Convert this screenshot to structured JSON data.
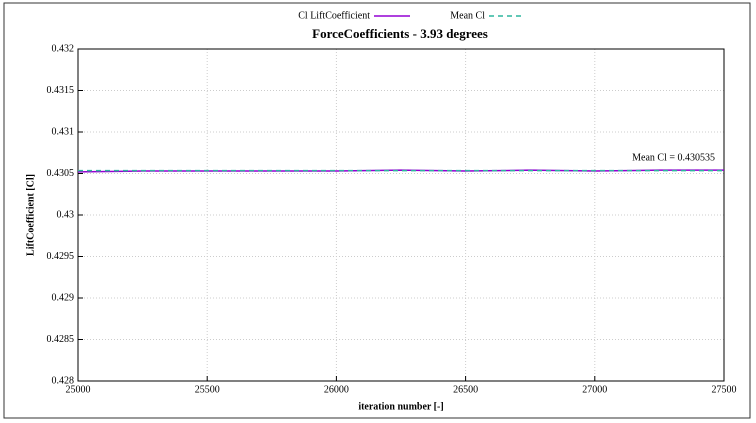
{
  "chart_data": {
    "type": "line",
    "title": "ForceCoefficients - 3.93 degrees",
    "x_label": "iteration number [-]",
    "y_label": "LiftCoefficient [Cl]",
    "annotation": "Mean Cl = 0.430535",
    "series": [
      {
        "name": "Cl LiftCoefficient",
        "color": "#9400d3",
        "dash": false,
        "x": [
          25000,
          25250,
          25500,
          25750,
          26000,
          26250,
          26500,
          26750,
          27000,
          27250,
          27500
        ],
        "values": [
          0.43052,
          0.43053,
          0.43053,
          0.43053,
          0.43053,
          0.43054,
          0.43053,
          0.43054,
          0.43053,
          0.43054,
          0.43054
        ]
      },
      {
        "name": "Mean Cl",
        "color": "#2fb59e",
        "dash": true,
        "x": [
          25000,
          27500
        ],
        "values": [
          0.430535,
          0.430535
        ]
      }
    ],
    "xlim": [
      25000,
      27500
    ],
    "xticks": [
      25000,
      25500,
      26000,
      26500,
      27000,
      27500
    ],
    "ylim": [
      0.428,
      0.432
    ],
    "yticks": [
      0.428,
      0.4285,
      0.429,
      0.4295,
      0.43,
      0.4305,
      0.431,
      0.4315,
      0.432
    ],
    "grid": true
  }
}
